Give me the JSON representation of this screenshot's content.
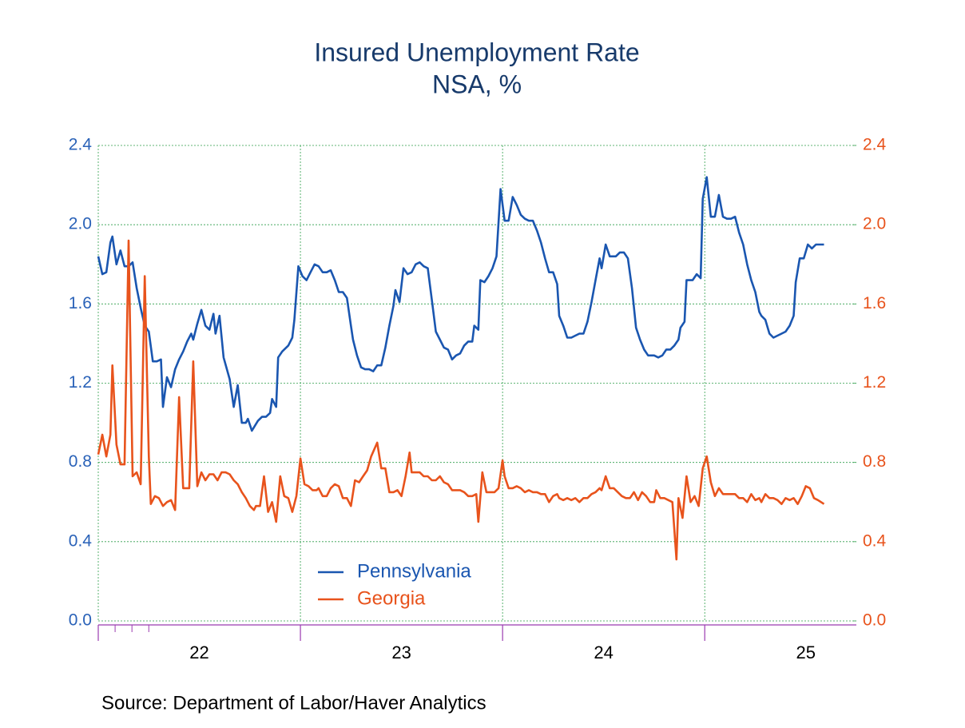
{
  "chart_data": {
    "type": "line",
    "title": "Insured Unemployment Rate",
    "subtitle": "NSA, %",
    "source": "Source:  Department of Labor/Haver Analytics",
    "xlim": [
      2022,
      2025.75
    ],
    "xticks": [
      {
        "value": 2022.5,
        "label": "22"
      },
      {
        "value": 2023.5,
        "label": "23"
      },
      {
        "value": 2024.5,
        "label": "24"
      },
      {
        "value": 2025.5,
        "label": "25"
      }
    ],
    "xgrid": [
      2022,
      2023,
      2024,
      2025
    ],
    "ylim": [
      0,
      2.4
    ],
    "yticks": [
      {
        "value": 0,
        "label": "0.0"
      },
      0.4,
      0.8,
      1.2,
      1.6,
      {
        "value": 2,
        "label": "2.0"
      },
      2.4
    ],
    "y2lim": [
      0,
      2.4
    ],
    "y2ticks": [
      {
        "value": 0,
        "label": "0.0"
      },
      0.4,
      0.8,
      1.2,
      1.6,
      {
        "value": 2,
        "label": "2.0"
      },
      2.4
    ],
    "grid": true,
    "legend": "lower-left",
    "series": [
      {
        "name": "Pennsylvania",
        "color": "#1a56b0",
        "x": [
          2022.0,
          2022.02,
          2022.04,
          2022.06,
          2022.07,
          2022.09,
          2022.11,
          2022.13,
          2022.15,
          2022.17,
          2022.19,
          2022.21,
          2022.23,
          2022.25,
          2022.27,
          2022.29,
          2022.31,
          2022.32,
          2022.34,
          2022.36,
          2022.38,
          2022.4,
          2022.42,
          2022.44,
          2022.46,
          2022.47,
          2022.49,
          2022.51,
          2022.53,
          2022.55,
          2022.57,
          2022.58,
          2022.6,
          2022.62,
          2022.65,
          2022.67,
          2022.69,
          2022.71,
          2022.73,
          2022.74,
          2022.76,
          2022.79,
          2022.81,
          2022.83,
          2022.85,
          2022.86,
          2022.88,
          2022.89,
          2022.91,
          2022.94,
          2022.96,
          2022.97,
          2022.99,
          2023.01,
          2023.03,
          2023.05,
          2023.07,
          2023.09,
          2023.11,
          2023.13,
          2023.15,
          2023.17,
          2023.19,
          2023.21,
          2023.23,
          2023.25,
          2023.26,
          2023.28,
          2023.3,
          2023.32,
          2023.34,
          2023.36,
          2023.38,
          2023.4,
          2023.42,
          2023.44,
          2023.46,
          2023.47,
          2023.49,
          2023.51,
          2023.53,
          2023.55,
          2023.57,
          2023.59,
          2023.61,
          2023.63,
          2023.65,
          2023.67,
          2023.69,
          2023.71,
          2023.73,
          2023.75,
          2023.77,
          2023.79,
          2023.81,
          2023.83,
          2023.85,
          2023.86,
          2023.88,
          2023.89,
          2023.91,
          2023.93,
          2023.95,
          2023.97,
          2023.99,
          2024.01,
          2024.03,
          2024.05,
          2024.07,
          2024.09,
          2024.11,
          2024.13,
          2024.15,
          2024.17,
          2024.19,
          2024.21,
          2024.23,
          2024.25,
          2024.27,
          2024.28,
          2024.3,
          2024.32,
          2024.34,
          2024.36,
          2024.38,
          2024.4,
          2024.42,
          2024.44,
          2024.46,
          2024.48,
          2024.49,
          2024.51,
          2024.53,
          2024.56,
          2024.58,
          2024.6,
          2024.62,
          2024.64,
          2024.66,
          2024.68,
          2024.7,
          2024.72,
          2024.75,
          2024.77,
          2024.79,
          2024.81,
          2024.83,
          2024.85,
          2024.87,
          2024.88,
          2024.9,
          2024.91,
          2024.94,
          2024.96,
          2024.98,
          2024.99,
          2025.01,
          2025.03,
          2025.05,
          2025.07,
          2025.09,
          2025.11,
          2025.13,
          2025.15,
          2025.17,
          2025.19,
          2025.21,
          2025.23,
          2025.25,
          2025.27,
          2025.28,
          2025.3,
          2025.32,
          2025.34,
          2025.36,
          2025.38,
          2025.4,
          2025.42,
          2025.44,
          2025.45,
          2025.47,
          2025.49,
          2025.51,
          2025.53,
          2025.55,
          2025.59
        ],
        "values": [
          1.84,
          1.75,
          1.76,
          1.91,
          1.94,
          1.8,
          1.87,
          1.79,
          1.79,
          1.81,
          1.68,
          1.58,
          1.49,
          1.46,
          1.31,
          1.31,
          1.32,
          1.08,
          1.23,
          1.18,
          1.27,
          1.32,
          1.36,
          1.41,
          1.45,
          1.42,
          1.5,
          1.57,
          1.49,
          1.47,
          1.55,
          1.45,
          1.54,
          1.33,
          1.22,
          1.08,
          1.19,
          1.0,
          1.0,
          1.02,
          0.96,
          1.01,
          1.03,
          1.03,
          1.05,
          1.12,
          1.08,
          1.33,
          1.36,
          1.39,
          1.43,
          1.52,
          1.79,
          1.74,
          1.72,
          1.76,
          1.8,
          1.79,
          1.76,
          1.76,
          1.77,
          1.72,
          1.66,
          1.66,
          1.63,
          1.49,
          1.42,
          1.34,
          1.28,
          1.27,
          1.27,
          1.26,
          1.29,
          1.29,
          1.38,
          1.49,
          1.59,
          1.67,
          1.61,
          1.78,
          1.75,
          1.76,
          1.8,
          1.81,
          1.79,
          1.78,
          1.62,
          1.46,
          1.42,
          1.38,
          1.37,
          1.32,
          1.34,
          1.35,
          1.39,
          1.41,
          1.41,
          1.49,
          1.47,
          1.72,
          1.71,
          1.74,
          1.78,
          1.84,
          2.18,
          2.02,
          2.02,
          2.14,
          2.1,
          2.05,
          2.03,
          2.02,
          2.02,
          1.97,
          1.91,
          1.83,
          1.76,
          1.76,
          1.7,
          1.54,
          1.49,
          1.43,
          1.43,
          1.44,
          1.45,
          1.45,
          1.51,
          1.61,
          1.72,
          1.83,
          1.78,
          1.9,
          1.84,
          1.84,
          1.86,
          1.86,
          1.83,
          1.68,
          1.48,
          1.42,
          1.37,
          1.34,
          1.34,
          1.33,
          1.34,
          1.37,
          1.37,
          1.39,
          1.42,
          1.48,
          1.51,
          1.72,
          1.72,
          1.75,
          1.73,
          2.13,
          2.24,
          2.04,
          2.04,
          2.15,
          2.04,
          2.03,
          2.03,
          2.04,
          1.96,
          1.9,
          1.8,
          1.72,
          1.66,
          1.56,
          1.54,
          1.52,
          1.45,
          1.43,
          1.44,
          1.45,
          1.46,
          1.49,
          1.54,
          1.71,
          1.83,
          1.83,
          1.9,
          1.88,
          1.9,
          1.9
        ]
      },
      {
        "name": "Georgia",
        "color": "#e8531c",
        "axis": "y2",
        "x": [
          2022.0,
          2022.02,
          2022.04,
          2022.06,
          2022.07,
          2022.09,
          2022.11,
          2022.13,
          2022.15,
          2022.17,
          2022.19,
          2022.21,
          2022.23,
          2022.25,
          2022.26,
          2022.28,
          2022.3,
          2022.32,
          2022.34,
          2022.36,
          2022.38,
          2022.4,
          2022.42,
          2022.43,
          2022.45,
          2022.47,
          2022.49,
          2022.51,
          2022.53,
          2022.55,
          2022.57,
          2022.59,
          2022.61,
          2022.63,
          2022.65,
          2022.67,
          2022.69,
          2022.71,
          2022.73,
          2022.75,
          2022.77,
          2022.78,
          2022.8,
          2022.82,
          2022.84,
          2022.86,
          2022.88,
          2022.9,
          2022.92,
          2022.94,
          2022.96,
          2022.98,
          2023.0,
          2023.02,
          2023.04,
          2023.06,
          2023.08,
          2023.09,
          2023.11,
          2023.13,
          2023.15,
          2023.17,
          2023.19,
          2023.21,
          2023.23,
          2023.25,
          2023.27,
          2023.29,
          2023.31,
          2023.33,
          2023.35,
          2023.38,
          2023.4,
          2023.42,
          2023.44,
          2023.46,
          2023.48,
          2023.5,
          2023.52,
          2023.54,
          2023.55,
          2023.57,
          2023.59,
          2023.61,
          2023.63,
          2023.65,
          2023.67,
          2023.69,
          2023.71,
          2023.73,
          2023.75,
          2023.77,
          2023.79,
          2023.81,
          2023.83,
          2023.85,
          2023.87,
          2023.88,
          2023.9,
          2023.92,
          2023.94,
          2023.96,
          2023.98,
          2024.0,
          2024.01,
          2024.03,
          2024.05,
          2024.07,
          2024.09,
          2024.11,
          2024.13,
          2024.15,
          2024.17,
          2024.19,
          2024.21,
          2024.23,
          2024.25,
          2024.27,
          2024.28,
          2024.3,
          2024.32,
          2024.34,
          2024.36,
          2024.38,
          2024.4,
          2024.42,
          2024.44,
          2024.46,
          2024.48,
          2024.49,
          2024.51,
          2024.53,
          2024.55,
          2024.57,
          2024.59,
          2024.61,
          2024.63,
          2024.65,
          2024.67,
          2024.69,
          2024.71,
          2024.73,
          2024.75,
          2024.76,
          2024.78,
          2024.8,
          2024.82,
          2024.84,
          2024.86,
          2024.87,
          2024.89,
          2024.91,
          2024.93,
          2024.95,
          2024.97,
          2024.99,
          2025.01,
          2025.03,
          2025.05,
          2025.07,
          2025.09,
          2025.11,
          2025.13,
          2025.15,
          2025.17,
          2025.19,
          2025.21,
          2025.23,
          2025.25,
          2025.27,
          2025.28,
          2025.3,
          2025.32,
          2025.34,
          2025.36,
          2025.38,
          2025.4,
          2025.42,
          2025.44,
          2025.46,
          2025.48,
          2025.5,
          2025.52,
          2025.54,
          2025.56,
          2025.59
        ],
        "values": [
          0.84,
          0.94,
          0.83,
          0.94,
          1.29,
          0.89,
          0.79,
          0.79,
          1.92,
          0.73,
          0.75,
          0.69,
          1.74,
          0.83,
          0.59,
          0.63,
          0.62,
          0.58,
          0.6,
          0.61,
          0.56,
          1.13,
          0.67,
          0.67,
          0.67,
          1.31,
          0.68,
          0.75,
          0.71,
          0.74,
          0.74,
          0.71,
          0.75,
          0.75,
          0.74,
          0.71,
          0.69,
          0.65,
          0.62,
          0.58,
          0.56,
          0.58,
          0.58,
          0.73,
          0.55,
          0.6,
          0.5,
          0.73,
          0.63,
          0.62,
          0.55,
          0.63,
          0.82,
          0.69,
          0.68,
          0.66,
          0.66,
          0.67,
          0.63,
          0.63,
          0.67,
          0.69,
          0.68,
          0.62,
          0.62,
          0.58,
          0.71,
          0.7,
          0.73,
          0.76,
          0.83,
          0.9,
          0.77,
          0.77,
          0.65,
          0.65,
          0.66,
          0.63,
          0.73,
          0.85,
          0.75,
          0.75,
          0.75,
          0.73,
          0.73,
          0.71,
          0.71,
          0.73,
          0.7,
          0.69,
          0.66,
          0.66,
          0.66,
          0.65,
          0.63,
          0.63,
          0.64,
          0.5,
          0.75,
          0.65,
          0.65,
          0.65,
          0.67,
          0.81,
          0.73,
          0.67,
          0.67,
          0.68,
          0.67,
          0.65,
          0.66,
          0.65,
          0.65,
          0.64,
          0.64,
          0.6,
          0.63,
          0.64,
          0.62,
          0.61,
          0.62,
          0.61,
          0.62,
          0.6,
          0.62,
          0.62,
          0.64,
          0.65,
          0.67,
          0.66,
          0.73,
          0.67,
          0.67,
          0.65,
          0.63,
          0.62,
          0.62,
          0.65,
          0.61,
          0.65,
          0.63,
          0.6,
          0.6,
          0.66,
          0.62,
          0.62,
          0.61,
          0.6,
          0.31,
          0.62,
          0.52,
          0.73,
          0.6,
          0.63,
          0.58,
          0.77,
          0.83,
          0.7,
          0.63,
          0.67,
          0.64,
          0.64,
          0.64,
          0.64,
          0.62,
          0.62,
          0.6,
          0.64,
          0.61,
          0.62,
          0.6,
          0.64,
          0.62,
          0.62,
          0.61,
          0.59,
          0.62,
          0.61,
          0.62,
          0.59,
          0.63,
          0.68,
          0.67,
          0.62,
          0.61,
          0.59
        ]
      }
    ]
  }
}
